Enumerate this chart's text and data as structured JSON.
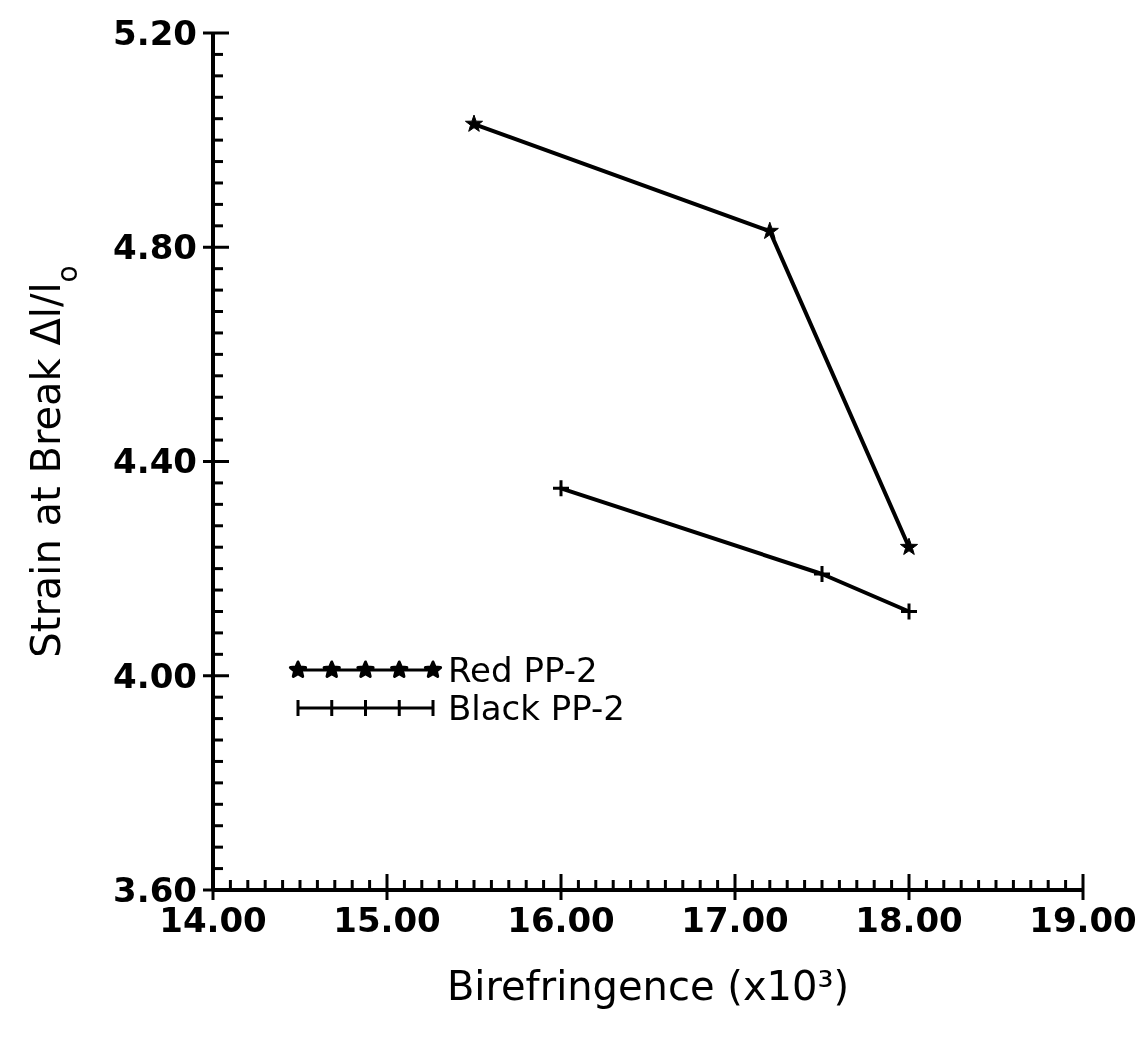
{
  "chart_data": {
    "type": "line",
    "xlabel": "Birefringence  (x10³)",
    "ylabel": "Strain at Break    Δl/l$_{o}$",
    "xlim": [
      14,
      19
    ],
    "ylim": [
      3.6,
      5.2
    ],
    "xticks": [
      {
        "value": 14,
        "label": "14.00"
      },
      {
        "value": 14.1,
        "label": null
      },
      {
        "value": 14.2,
        "label": null
      },
      {
        "value": 14.3,
        "label": null
      },
      {
        "value": 14.4,
        "label": null
      },
      {
        "value": 14.5,
        "label": null
      },
      {
        "value": 14.6,
        "label": null
      },
      {
        "value": 14.7,
        "label": null
      },
      {
        "value": 14.8,
        "label": null
      },
      {
        "value": 14.9,
        "label": null
      },
      {
        "value": 15,
        "label": "15.00"
      },
      {
        "value": 15.1,
        "label": null
      },
      {
        "value": 15.2,
        "label": null
      },
      {
        "value": 15.3,
        "label": null
      },
      {
        "value": 15.4,
        "label": null
      },
      {
        "value": 15.5,
        "label": null
      },
      {
        "value": 15.6,
        "label": null
      },
      {
        "value": 15.7,
        "label": null
      },
      {
        "value": 15.8,
        "label": null
      },
      {
        "value": 15.9,
        "label": null
      },
      {
        "value": 16,
        "label": "16.00"
      },
      {
        "value": 16.1,
        "label": null
      },
      {
        "value": 16.2,
        "label": null
      },
      {
        "value": 16.3,
        "label": null
      },
      {
        "value": 16.4,
        "label": null
      },
      {
        "value": 16.5,
        "label": null
      },
      {
        "value": 16.6,
        "label": null
      },
      {
        "value": 16.7,
        "label": null
      },
      {
        "value": 16.8,
        "label": null
      },
      {
        "value": 16.9,
        "label": null
      },
      {
        "value": 17,
        "label": "17.00"
      },
      {
        "value": 17.1,
        "label": null
      },
      {
        "value": 17.2,
        "label": null
      },
      {
        "value": 17.3,
        "label": null
      },
      {
        "value": 17.4,
        "label": null
      },
      {
        "value": 17.5,
        "label": null
      },
      {
        "value": 17.6,
        "label": null
      },
      {
        "value": 17.7,
        "label": null
      },
      {
        "value": 17.8,
        "label": null
      },
      {
        "value": 17.9,
        "label": null
      },
      {
        "value": 18,
        "label": "18.00"
      },
      {
        "value": 18.1,
        "label": null
      },
      {
        "value": 18.2,
        "label": null
      },
      {
        "value": 18.3,
        "label": null
      },
      {
        "value": 18.4,
        "label": null
      },
      {
        "value": 18.5,
        "label": null
      },
      {
        "value": 18.6,
        "label": null
      },
      {
        "value": 18.7,
        "label": null
      },
      {
        "value": 18.8,
        "label": null
      },
      {
        "value": 18.9,
        "label": null
      },
      {
        "value": 19,
        "label": "19.00"
      }
    ],
    "yticks": [
      {
        "value": 3.6,
        "label": "3.60"
      },
      {
        "value": 3.64,
        "label": null
      },
      {
        "value": 3.68,
        "label": null
      },
      {
        "value": 3.72,
        "label": null
      },
      {
        "value": 3.76,
        "label": null
      },
      {
        "value": 3.8,
        "label": null
      },
      {
        "value": 3.84,
        "label": null
      },
      {
        "value": 3.88,
        "label": null
      },
      {
        "value": 3.92,
        "label": null
      },
      {
        "value": 3.96,
        "label": null
      },
      {
        "value": 4.0,
        "label": "4.00"
      },
      {
        "value": 4.04,
        "label": null
      },
      {
        "value": 4.08,
        "label": null
      },
      {
        "value": 4.12,
        "label": null
      },
      {
        "value": 4.16,
        "label": null
      },
      {
        "value": 4.2,
        "label": null
      },
      {
        "value": 4.24,
        "label": null
      },
      {
        "value": 4.28,
        "label": null
      },
      {
        "value": 4.32,
        "label": null
      },
      {
        "value": 4.36,
        "label": null
      },
      {
        "value": 4.4,
        "label": "4.40"
      },
      {
        "value": 4.44,
        "label": null
      },
      {
        "value": 4.48,
        "label": null
      },
      {
        "value": 4.52,
        "label": null
      },
      {
        "value": 4.56,
        "label": null
      },
      {
        "value": 4.6,
        "label": null
      },
      {
        "value": 4.64,
        "label": null
      },
      {
        "value": 4.68,
        "label": null
      },
      {
        "value": 4.72,
        "label": null
      },
      {
        "value": 4.76,
        "label": null
      },
      {
        "value": 4.8,
        "label": "4.80"
      },
      {
        "value": 4.84,
        "label": null
      },
      {
        "value": 4.88,
        "label": null
      },
      {
        "value": 4.92,
        "label": null
      },
      {
        "value": 4.96,
        "label": null
      },
      {
        "value": 5.0,
        "label": null
      },
      {
        "value": 5.04,
        "label": null
      },
      {
        "value": 5.08,
        "label": null
      },
      {
        "value": 5.12,
        "label": null
      },
      {
        "value": 5.16,
        "label": null
      },
      {
        "value": 5.2,
        "label": "5.20"
      }
    ],
    "legend": "bottom left",
    "series": [
      {
        "name": "Red PP-2",
        "color": "#000000",
        "marker": "star",
        "x": [
          15.5,
          17.2,
          18.0
        ],
        "values": [
          5.03,
          4.83,
          4.24
        ]
      },
      {
        "name": "Black PP-2",
        "color": "#000000",
        "marker": "cross",
        "x": [
          16.0,
          17.5,
          18.0
        ],
        "values": [
          4.35,
          4.19,
          4.12
        ]
      }
    ]
  }
}
